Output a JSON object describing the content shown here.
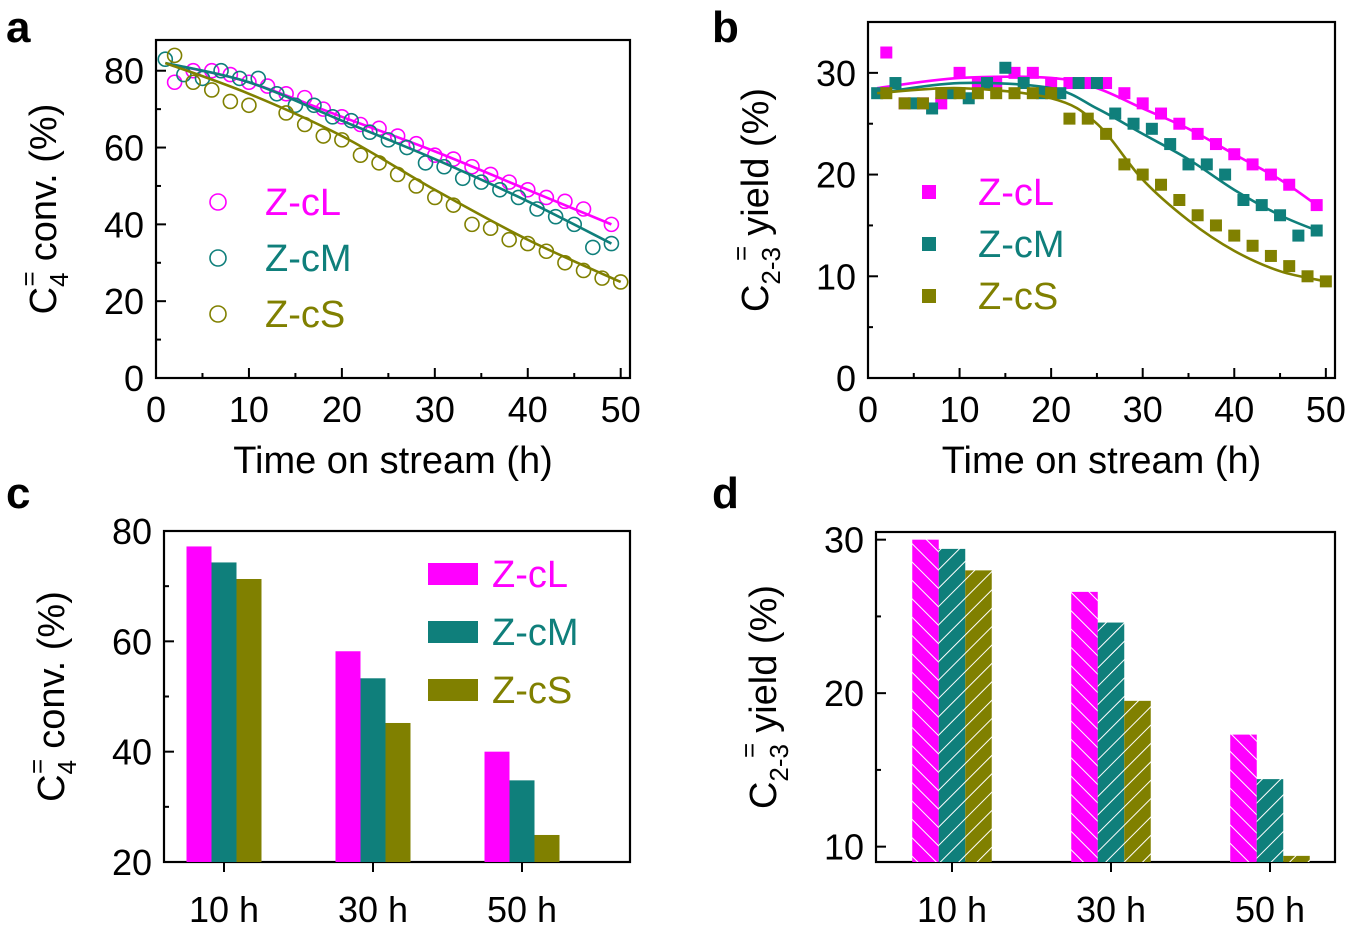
{
  "colors": {
    "Z-cL": "#ff00ff",
    "Z-cM": "#0f7f7b",
    "Z-cS": "#808000"
  },
  "chart_data": [
    {
      "panel": "a",
      "type": "scatter",
      "ylabel_parts": {
        "base": "C",
        "sub": "4",
        "sup": "=",
        "rest": "conv. (%)"
      },
      "xlabel": "Time on stream (h)",
      "xlim": [
        0,
        51
      ],
      "ylim": [
        0,
        88
      ],
      "xticks": [
        "0",
        "10",
        "20",
        "30",
        "40",
        "50"
      ],
      "yticks": [
        "0",
        "20",
        "40",
        "60",
        "80"
      ],
      "x_tick_values": [
        0,
        10,
        20,
        30,
        40,
        50
      ],
      "y_tick_values": [
        0,
        20,
        40,
        60,
        80
      ],
      "legend": [
        "Z-cL",
        "Z-cM",
        "Z-cS"
      ],
      "series": [
        {
          "name": "Z-cL",
          "x": [
            2,
            4,
            6,
            8,
            10,
            12,
            14,
            16,
            18,
            20,
            22,
            24,
            26,
            28,
            30,
            32,
            34,
            36,
            38,
            40,
            42,
            44,
            46,
            49
          ],
          "y": [
            77,
            80,
            80,
            79,
            77,
            76,
            74,
            73,
            70,
            68,
            66,
            65,
            63,
            61,
            58,
            57,
            55,
            53,
            51,
            49,
            47,
            46,
            44,
            40
          ],
          "fit_x": [
            3,
            10,
            20,
            30,
            40,
            49
          ],
          "fit_y": [
            81,
            77,
            68,
            59,
            49,
            40
          ]
        },
        {
          "name": "Z-cM",
          "x": [
            1,
            3,
            5,
            7,
            9,
            11,
            13,
            15,
            17,
            19,
            21,
            23,
            25,
            27,
            29,
            31,
            33,
            35,
            37,
            39,
            41,
            43,
            45,
            47,
            49
          ],
          "y": [
            83,
            79,
            78,
            80,
            78,
            78,
            74,
            71,
            71,
            68,
            67,
            64,
            62,
            60,
            56,
            55,
            52,
            51,
            49,
            47,
            44,
            42,
            40,
            34,
            35
          ],
          "fit_x": [
            1,
            10,
            20,
            30,
            40,
            49
          ],
          "fit_y": [
            82,
            77,
            67,
            57,
            46,
            35
          ]
        },
        {
          "name": "Z-cS",
          "x": [
            2,
            4,
            6,
            8,
            10,
            14,
            16,
            18,
            20,
            22,
            24,
            26,
            28,
            30,
            32,
            34,
            36,
            38,
            40,
            42,
            44,
            46,
            48,
            50
          ],
          "y": [
            84,
            77,
            75,
            72,
            71,
            69,
            66,
            63,
            62,
            58,
            56,
            53,
            50,
            47,
            45,
            40,
            39,
            36,
            35,
            33,
            30,
            28,
            26,
            25
          ],
          "fit_x": [
            1,
            10,
            20,
            30,
            40,
            50
          ],
          "fit_y": [
            82,
            74,
            63,
            49,
            36,
            25
          ]
        }
      ]
    },
    {
      "panel": "b",
      "type": "scatter",
      "ylabel_parts": {
        "base": "C",
        "sub": "2-3",
        "sup": "=",
        "rest": "yield (%)"
      },
      "xlabel": "Time on stream (h)",
      "xlim": [
        0,
        51
      ],
      "ylim": [
        0,
        35
      ],
      "xticks": [
        "0",
        "10",
        "20",
        "30",
        "40",
        "50"
      ],
      "yticks": [
        "0",
        "10",
        "20",
        "30"
      ],
      "x_tick_values": [
        0,
        10,
        20,
        30,
        40,
        50
      ],
      "y_tick_values": [
        0,
        10,
        20,
        30
      ],
      "legend": [
        "Z-cL",
        "Z-cM",
        "Z-cS"
      ],
      "series": [
        {
          "name": "Z-cL",
          "x": [
            2,
            4,
            6,
            8,
            10,
            12,
            14,
            16,
            18,
            20,
            22,
            24,
            26,
            28,
            30,
            32,
            34,
            36,
            38,
            40,
            42,
            44,
            46,
            49
          ],
          "y": [
            32,
            27,
            27,
            27,
            30,
            29,
            29,
            30,
            30,
            29,
            29,
            29,
            29,
            28,
            27,
            26,
            25,
            24,
            23,
            22,
            21,
            20,
            19,
            17
          ],
          "fit_x": [
            1,
            10,
            20,
            25,
            30,
            35,
            40,
            45,
            49
          ],
          "fit_y": [
            28.5,
            29.5,
            29.5,
            28.5,
            26.5,
            24.5,
            22,
            19.5,
            17
          ]
        },
        {
          "name": "Z-cM",
          "x": [
            1,
            3,
            5,
            7,
            9,
            11,
            13,
            15,
            17,
            19,
            21,
            23,
            25,
            27,
            29,
            31,
            33,
            35,
            37,
            39,
            41,
            43,
            45,
            47,
            49
          ],
          "y": [
            28,
            29,
            27,
            26.5,
            28,
            27.5,
            29,
            30.5,
            29,
            28,
            28,
            29,
            29,
            26,
            25,
            24.5,
            23,
            21,
            21,
            20,
            17.5,
            17,
            16,
            14,
            14.5
          ],
          "fit_x": [
            1,
            10,
            20,
            25,
            30,
            35,
            40,
            45,
            49
          ],
          "fit_y": [
            28,
            29,
            28.5,
            26.5,
            24,
            21.5,
            18.5,
            16,
            14.5
          ]
        },
        {
          "name": "Z-cS",
          "x": [
            2,
            4,
            6,
            8,
            10,
            12,
            14,
            16,
            18,
            20,
            22,
            24,
            26,
            28,
            30,
            32,
            34,
            36,
            38,
            40,
            42,
            44,
            46,
            48,
            50
          ],
          "y": [
            28,
            27,
            27,
            28,
            28,
            28,
            28,
            28,
            28,
            28,
            25.5,
            25.5,
            24,
            21,
            20,
            19,
            17.5,
            16,
            15,
            14,
            13,
            12,
            11,
            10,
            9.5
          ],
          "fit_x": [
            1,
            10,
            20,
            25,
            30,
            35,
            40,
            45,
            50
          ],
          "fit_y": [
            28,
            28.5,
            27.5,
            25,
            19.5,
            15.5,
            12.5,
            10.5,
            9.5
          ]
        }
      ]
    },
    {
      "panel": "c",
      "type": "bar",
      "ylabel_parts": {
        "base": "C",
        "sub": "4",
        "sup": "=",
        "rest": "conv. (%)"
      },
      "categories": [
        "10 h",
        "30 h",
        "50 h"
      ],
      "ylim": [
        20,
        80
      ],
      "yticks": [
        "20",
        "40",
        "60",
        "80"
      ],
      "y_tick_values": [
        20,
        40,
        60,
        80
      ],
      "hatched": false,
      "legend": [
        "Z-cL",
        "Z-cM",
        "Z-cS"
      ],
      "series": [
        {
          "name": "Z-cL",
          "values": [
            77.2,
            58.2,
            40
          ]
        },
        {
          "name": "Z-cM",
          "values": [
            74.3,
            53.3,
            34.8
          ]
        },
        {
          "name": "Z-cS",
          "values": [
            71.3,
            45.2,
            24.9
          ]
        }
      ]
    },
    {
      "panel": "d",
      "type": "bar",
      "ylabel_parts": {
        "base": "C",
        "sub": "2-3",
        "sup": "=",
        "rest": "yield (%)"
      },
      "categories": [
        "10 h",
        "30 h",
        "50 h"
      ],
      "ylim": [
        9,
        30.5
      ],
      "yticks": [
        "10",
        "20",
        "30"
      ],
      "y_tick_values": [
        10,
        20,
        30
      ],
      "hatched": true,
      "series": [
        {
          "name": "Z-cL",
          "values": [
            30,
            26.6,
            17.3
          ]
        },
        {
          "name": "Z-cM",
          "values": [
            29.4,
            24.6,
            14.4
          ]
        },
        {
          "name": "Z-cS",
          "values": [
            28,
            19.5,
            9.4
          ]
        }
      ]
    }
  ]
}
